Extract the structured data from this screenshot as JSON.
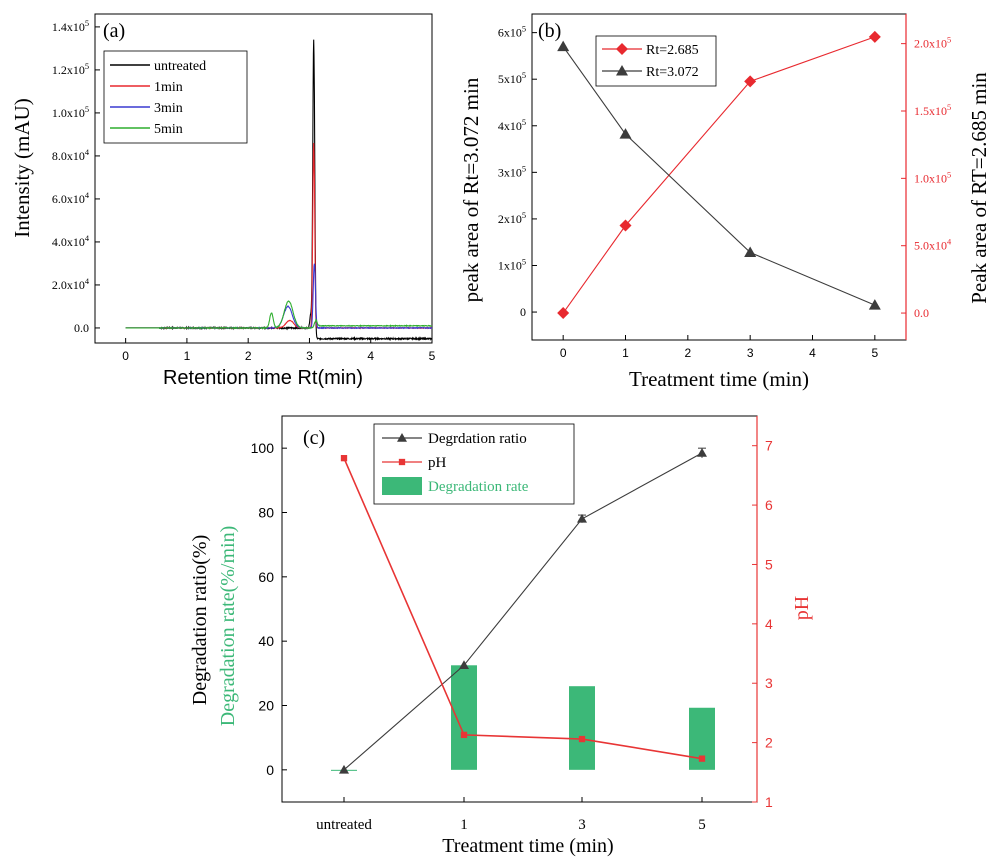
{
  "colors": {
    "black": "#000000",
    "dark": "#3c3c3c",
    "red": "#e8292f",
    "blue": "#3a3ad0",
    "green": "#2fae2f",
    "bar_green": "#3cb878",
    "red_marker": "#e83535"
  },
  "chart_data": [
    {
      "id": "a",
      "type": "line",
      "panel_label": "(a)",
      "xlabel": "Retention time Rt(min)",
      "ylabel": "Intensity (mAU)",
      "xlim": [
        -0.5,
        5.0
      ],
      "ylim": [
        -7000,
        146000
      ],
      "x_ticks": [
        0,
        1,
        2,
        3,
        4,
        5
      ],
      "y_ticks": [
        {
          "value": 0,
          "mant": "0.0",
          "exp": ""
        },
        {
          "value": 20000,
          "mant": "2.0x10",
          "exp": "4"
        },
        {
          "value": 40000,
          "mant": "4.0x10",
          "exp": "4"
        },
        {
          "value": 60000,
          "mant": "6.0x10",
          "exp": "4"
        },
        {
          "value": 80000,
          "mant": "8.0x10",
          "exp": "4"
        },
        {
          "value": 100000,
          "mant": "1.0x10",
          "exp": "5"
        },
        {
          "value": 120000,
          "mant": "1.2x10",
          "exp": "5"
        },
        {
          "value": 140000,
          "mant": "1.4x10",
          "exp": "5"
        }
      ],
      "legend": "top-left",
      "series": [
        {
          "name": "untreated",
          "color": "#000000",
          "baseline_start": 0,
          "baseline_end": -5000,
          "noise": 600,
          "peaks": [
            {
              "x": 3.07,
              "h": 134000,
              "w": 0.022
            },
            {
              "x": 3.02,
              "h": 6000,
              "w": 0.02
            }
          ]
        },
        {
          "name": "1min",
          "color": "#e8292f",
          "baseline_start": 0,
          "baseline_end": 0,
          "noise": 300,
          "peaks": [
            {
              "x": 2.68,
              "h": 3500,
              "w": 0.09
            },
            {
              "x": 3.07,
              "h": 86000,
              "w": 0.022
            }
          ]
        },
        {
          "name": "3min",
          "color": "#3a3ad0",
          "baseline_start": 0,
          "baseline_end": 0,
          "noise": 300,
          "peaks": [
            {
              "x": 2.65,
              "h": 10000,
              "w": 0.1
            },
            {
              "x": 3.08,
              "h": 30000,
              "w": 0.025
            }
          ]
        },
        {
          "name": "5min",
          "color": "#2fae2f",
          "baseline_start": 0,
          "baseline_end": 1000,
          "noise": 300,
          "peaks": [
            {
              "x": 2.38,
              "h": 7000,
              "w": 0.04
            },
            {
              "x": 2.66,
              "h": 12500,
              "w": 0.1
            },
            {
              "x": 3.1,
              "h": 3000,
              "w": 0.03
            }
          ]
        }
      ]
    },
    {
      "id": "b",
      "type": "line",
      "panel_label": "(b)",
      "xlabel": "Treatment time (min)",
      "ylabel_left": "peak area of Rt=3.072 min",
      "ylabel_right": "Peak area of RT=2.685 min",
      "xlim": [
        -0.5,
        5.5
      ],
      "ylim_left": [
        -60000,
        640000
      ],
      "ylim_right": [
        -20000,
        222000
      ],
      "x_ticks": [
        0,
        1,
        2,
        3,
        4,
        5
      ],
      "y_ticks_left": [
        {
          "value": 0,
          "mant": "0",
          "exp": ""
        },
        {
          "value": 100000,
          "mant": "1x10",
          "exp": "5"
        },
        {
          "value": 200000,
          "mant": "2x10",
          "exp": "5"
        },
        {
          "value": 300000,
          "mant": "3x10",
          "exp": "5"
        },
        {
          "value": 400000,
          "mant": "4x10",
          "exp": "5"
        },
        {
          "value": 500000,
          "mant": "5x10",
          "exp": "5"
        },
        {
          "value": 600000,
          "mant": "6x10",
          "exp": "5"
        }
      ],
      "y_ticks_right": [
        {
          "value": 0,
          "mant": "0.0",
          "exp": ""
        },
        {
          "value": 50000,
          "mant": "5.0x10",
          "exp": "4"
        },
        {
          "value": 100000,
          "mant": "1.0x10",
          "exp": "5"
        },
        {
          "value": 150000,
          "mant": "1.5x10",
          "exp": "5"
        },
        {
          "value": 200000,
          "mant": "2.0x10",
          "exp": "5"
        }
      ],
      "legend": "top-left",
      "series": [
        {
          "name": "Rt=2.685",
          "axis": "right",
          "color": "#e8292f",
          "marker": "diamond",
          "x": [
            0,
            1,
            3,
            5
          ],
          "y": [
            0,
            65000,
            172000,
            205000
          ]
        },
        {
          "name": "Rt=3.072",
          "axis": "left",
          "color": "#3c3c3c",
          "marker": "triangle",
          "x": [
            0,
            1,
            3,
            5
          ],
          "y": [
            570000,
            382000,
            128000,
            15000
          ]
        }
      ]
    },
    {
      "id": "c",
      "type": "bar",
      "panel_label": "(c)",
      "xlabel": "Treatment time (min)",
      "ylabel_left_1": "Degradation ratio(%)",
      "ylabel_left_2": "Degradation rate(%/min)",
      "ylabel_right": "pH",
      "categories": [
        "untreated",
        "1",
        "3",
        "5"
      ],
      "ylim_left": [
        -10,
        110
      ],
      "ylim_right": [
        1,
        7.5
      ],
      "y_ticks_left": [
        0,
        20,
        40,
        60,
        80,
        100
      ],
      "y_ticks_right": [
        1,
        2,
        3,
        4,
        5,
        6,
        7
      ],
      "legend": "top-left",
      "series": [
        {
          "name": "Degrdation ratio",
          "axis": "left",
          "color": "#3c3c3c",
          "marker": "triangle",
          "values": [
            0,
            32.5,
            78,
            98.5
          ],
          "errors": [
            0,
            0,
            1.2,
            1.5
          ]
        },
        {
          "name": "pH",
          "axis": "right",
          "color": "#e83535",
          "marker": "square",
          "values": [
            6.79,
            2.13,
            2.06,
            1.73
          ]
        },
        {
          "name": "Degradation rate",
          "axis": "left",
          "color": "#3cb878",
          "kind": "bar",
          "values": [
            0,
            32.5,
            26,
            19.3
          ]
        }
      ]
    }
  ]
}
